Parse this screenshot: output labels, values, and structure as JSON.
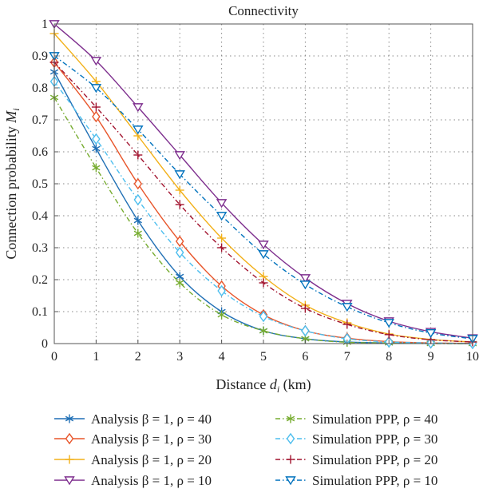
{
  "chart_data": {
    "type": "line",
    "title": "Connectivity",
    "xlabel": "Distance d_i (km)",
    "ylabel": "Connection probability M_i",
    "xlim": [
      0,
      10
    ],
    "ylim": [
      0,
      1
    ],
    "x_ticks": [
      "0",
      "1",
      "2",
      "3",
      "4",
      "5",
      "6",
      "7",
      "8",
      "9",
      "10"
    ],
    "y_ticks": [
      "0",
      "0.1",
      "0.2",
      "0.3",
      "0.4",
      "0.5",
      "0.6",
      "0.7",
      "0.8",
      "0.9",
      "1"
    ],
    "grid": "dotted",
    "legend_position": "bottom",
    "x": [
      0,
      1,
      2,
      3,
      4,
      5,
      6,
      7,
      8,
      9,
      10
    ],
    "series": [
      {
        "name": "Analysis β = 1, ρ = 40",
        "color": "#1f6fb5",
        "marker": "star",
        "dash": "solid",
        "values": [
          0.85,
          0.61,
          0.385,
          0.21,
          0.1,
          0.04,
          0.015,
          0.005,
          0.002,
          0.001,
          0.0
        ]
      },
      {
        "name": "Analysis β = 1, ρ = 30",
        "color": "#e8552a",
        "marker": "diamond",
        "dash": "solid",
        "values": [
          0.88,
          0.71,
          0.5,
          0.32,
          0.18,
          0.09,
          0.04,
          0.017,
          0.006,
          0.002,
          0.001
        ]
      },
      {
        "name": "Analysis β = 1, ρ = 20",
        "color": "#f2b018",
        "marker": "plus",
        "dash": "solid",
        "values": [
          0.97,
          0.82,
          0.65,
          0.48,
          0.33,
          0.21,
          0.12,
          0.065,
          0.03,
          0.013,
          0.005
        ]
      },
      {
        "name": "Analysis β = 1, ρ = 10",
        "color": "#7e2f8e",
        "marker": "triangle-down",
        "dash": "solid",
        "values": [
          1.0,
          0.885,
          0.74,
          0.59,
          0.44,
          0.31,
          0.205,
          0.125,
          0.07,
          0.037,
          0.017
        ]
      },
      {
        "name": "Simulation PPP, ρ = 40",
        "color": "#77ac30",
        "marker": "star",
        "dash": "dashdot",
        "values": [
          0.77,
          0.55,
          0.345,
          0.19,
          0.09,
          0.04,
          0.015,
          0.004,
          0.002,
          0.0,
          0.0
        ]
      },
      {
        "name": "Simulation PPP, ρ = 30",
        "color": "#4dbeee",
        "marker": "diamond",
        "dash": "dashdot",
        "values": [
          0.82,
          0.64,
          0.45,
          0.285,
          0.165,
          0.085,
          0.04,
          0.015,
          0.005,
          0.002,
          0.0
        ]
      },
      {
        "name": "Simulation PPP, ρ = 20",
        "color": "#a2142f",
        "marker": "plus",
        "dash": "dashdot",
        "values": [
          0.88,
          0.74,
          0.59,
          0.435,
          0.3,
          0.19,
          0.11,
          0.06,
          0.028,
          0.012,
          0.005
        ]
      },
      {
        "name": "Simulation PPP, ρ = 10",
        "color": "#0072bd",
        "marker": "triangle-down",
        "dash": "dashdot",
        "values": [
          0.9,
          0.8,
          0.67,
          0.53,
          0.4,
          0.28,
          0.185,
          0.115,
          0.065,
          0.033,
          0.015
        ]
      }
    ]
  }
}
